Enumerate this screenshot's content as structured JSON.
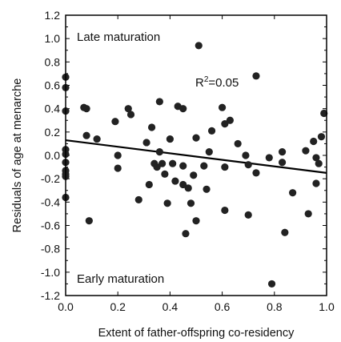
{
  "chart_data": {
    "type": "scatter",
    "xlabel": "Extent of father-offspring co-residency",
    "ylabel": "Residuals of age at menarche",
    "xlim": [
      0.0,
      1.0
    ],
    "ylim": [
      -1.2,
      1.2
    ],
    "x_ticks": [
      "0.0",
      "0.2",
      "0.4",
      "0.6",
      "0.8",
      "1.0"
    ],
    "y_ticks": [
      "1.2",
      "1.0",
      "0.8",
      "0.6",
      "0.4",
      "0.2",
      "0.0",
      "-0.2",
      "-0.4",
      "-0.6",
      "-0.8",
      "-1.0",
      "-1.2"
    ],
    "annotations": {
      "late": "Late maturation",
      "early": "Early maturation",
      "r2_base": "R",
      "r2_sup": "2",
      "r2_value": "=0.05"
    },
    "regression_line": {
      "x": [
        0.0,
        1.0
      ],
      "y": [
        0.13,
        -0.15
      ]
    },
    "points": [
      {
        "x": 0.0,
        "y": 0.67
      },
      {
        "x": 0.0,
        "y": 0.58
      },
      {
        "x": 0.0,
        "y": 0.38
      },
      {
        "x": 0.0,
        "y": 0.05
      },
      {
        "x": 0.0,
        "y": 0.01
      },
      {
        "x": 0.0,
        "y": -0.06
      },
      {
        "x": 0.0,
        "y": -0.13
      },
      {
        "x": 0.0,
        "y": -0.16
      },
      {
        "x": 0.0,
        "y": -0.18
      },
      {
        "x": 0.0,
        "y": -0.36
      },
      {
        "x": 0.07,
        "y": 0.41
      },
      {
        "x": 0.08,
        "y": 0.4
      },
      {
        "x": 0.08,
        "y": 0.17
      },
      {
        "x": 0.09,
        "y": -0.56
      },
      {
        "x": 0.12,
        "y": 0.14
      },
      {
        "x": 0.19,
        "y": 0.29
      },
      {
        "x": 0.2,
        "y": 0.0
      },
      {
        "x": 0.2,
        "y": -0.11
      },
      {
        "x": 0.24,
        "y": 0.4
      },
      {
        "x": 0.25,
        "y": 0.35
      },
      {
        "x": 0.28,
        "y": -0.38
      },
      {
        "x": 0.31,
        "y": 0.11
      },
      {
        "x": 0.32,
        "y": -0.25
      },
      {
        "x": 0.33,
        "y": 0.24
      },
      {
        "x": 0.34,
        "y": -0.07
      },
      {
        "x": 0.35,
        "y": -0.1
      },
      {
        "x": 0.36,
        "y": 0.46
      },
      {
        "x": 0.36,
        "y": 0.03
      },
      {
        "x": 0.37,
        "y": -0.07
      },
      {
        "x": 0.38,
        "y": -0.16
      },
      {
        "x": 0.39,
        "y": -0.41
      },
      {
        "x": 0.4,
        "y": 0.14
      },
      {
        "x": 0.41,
        "y": -0.07
      },
      {
        "x": 0.42,
        "y": -0.22
      },
      {
        "x": 0.43,
        "y": 0.42
      },
      {
        "x": 0.45,
        "y": 0.4
      },
      {
        "x": 0.45,
        "y": -0.09
      },
      {
        "x": 0.45,
        "y": -0.25
      },
      {
        "x": 0.46,
        "y": -0.67
      },
      {
        "x": 0.47,
        "y": -0.28
      },
      {
        "x": 0.48,
        "y": -0.41
      },
      {
        "x": 0.49,
        "y": -0.17
      },
      {
        "x": 0.5,
        "y": 0.15
      },
      {
        "x": 0.5,
        "y": -0.56
      },
      {
        "x": 0.51,
        "y": 0.94
      },
      {
        "x": 0.53,
        "y": -0.09
      },
      {
        "x": 0.54,
        "y": -0.29
      },
      {
        "x": 0.55,
        "y": 0.03
      },
      {
        "x": 0.56,
        "y": 0.21
      },
      {
        "x": 0.6,
        "y": 0.41
      },
      {
        "x": 0.61,
        "y": 0.27
      },
      {
        "x": 0.61,
        "y": -0.1
      },
      {
        "x": 0.61,
        "y": -0.47
      },
      {
        "x": 0.63,
        "y": 0.3
      },
      {
        "x": 0.66,
        "y": 0.1
      },
      {
        "x": 0.69,
        "y": 0.0
      },
      {
        "x": 0.7,
        "y": -0.08
      },
      {
        "x": 0.7,
        "y": -0.51
      },
      {
        "x": 0.73,
        "y": 0.68
      },
      {
        "x": 0.73,
        "y": -0.15
      },
      {
        "x": 0.78,
        "y": -0.02
      },
      {
        "x": 0.79,
        "y": -1.1
      },
      {
        "x": 0.83,
        "y": 0.03
      },
      {
        "x": 0.83,
        "y": -0.06
      },
      {
        "x": 0.84,
        "y": -0.66
      },
      {
        "x": 0.87,
        "y": -0.32
      },
      {
        "x": 0.92,
        "y": 0.04
      },
      {
        "x": 0.93,
        "y": -0.5
      },
      {
        "x": 0.95,
        "y": 0.12
      },
      {
        "x": 0.96,
        "y": -0.02
      },
      {
        "x": 0.96,
        "y": -0.24
      },
      {
        "x": 0.97,
        "y": -0.07
      },
      {
        "x": 0.98,
        "y": 0.16
      },
      {
        "x": 0.99,
        "y": 0.36
      }
    ],
    "colors": {
      "point": "#222222",
      "line": "#000000",
      "axis": "#000000"
    },
    "grid": false,
    "legend": "none"
  }
}
